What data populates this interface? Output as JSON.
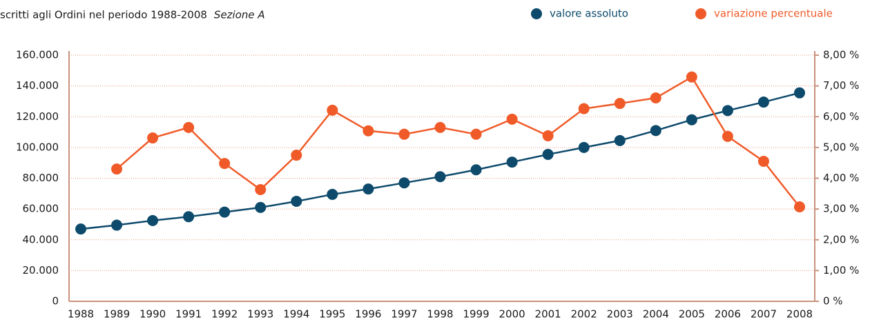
{
  "chart_data": {
    "type": "line",
    "title": "scritti agli Ordini nel periodo 1988-2008",
    "subtitle": "Sezione A",
    "categories": [
      "1988",
      "1989",
      "1990",
      "1991",
      "1992",
      "1993",
      "1994",
      "1995",
      "1996",
      "1997",
      "1998",
      "1999",
      "2000",
      "2001",
      "2002",
      "2003",
      "2004",
      "2005",
      "2006",
      "2007",
      "2008"
    ],
    "series": [
      {
        "name": "valore assoluto",
        "color": "#0d4a6b",
        "values": [
          47000,
          49500,
          52500,
          55000,
          58000,
          61000,
          65000,
          69500,
          73000,
          77000,
          81000,
          85500,
          90500,
          95500,
          100000,
          104500,
          111000,
          118000,
          124000,
          129500,
          135500
        ]
      },
      {
        "name": "variazione percentuale",
        "color": "#f05a28",
        "axis": "y2",
        "values": [
          null,
          4.3,
          5.31,
          5.65,
          4.48,
          3.63,
          4.75,
          6.21,
          5.54,
          5.43,
          5.65,
          5.43,
          5.92,
          5.38,
          6.26,
          6.43,
          6.61,
          7.29,
          5.36,
          4.55,
          3.07
        ]
      }
    ],
    "ylim": [
      0,
      160000
    ],
    "yticks": [
      0,
      {
        "value": 20000,
        "label": "20.000"
      },
      {
        "value": 40000,
        "label": "40.000"
      },
      {
        "value": 60000,
        "label": "60.000"
      },
      {
        "value": 80000,
        "label": "80.000"
      },
      {
        "value": 100000,
        "label": "100.000"
      },
      {
        "value": 120000,
        "label": "120.000"
      },
      {
        "value": 140000,
        "label": "140.000"
      },
      {
        "value": 160000,
        "label": "160.000"
      }
    ],
    "y2lim": [
      0,
      8
    ],
    "y2ticks": [
      {
        "value": 0,
        "label": "0 %"
      },
      {
        "value": 1,
        "label": "1,00 %"
      },
      {
        "value": 2,
        "label": "2,00 %"
      },
      {
        "value": 3,
        "label": "3,00 %"
      },
      {
        "value": 4,
        "label": "4,00 %"
      },
      {
        "value": 5,
        "label": "5,00 %"
      },
      {
        "value": 6,
        "label": "6,00 %"
      },
      {
        "value": 7,
        "label": "7,00 %"
      },
      {
        "value": 8,
        "label": "8,00 %"
      }
    ],
    "grid": true,
    "legend": "top-right"
  }
}
